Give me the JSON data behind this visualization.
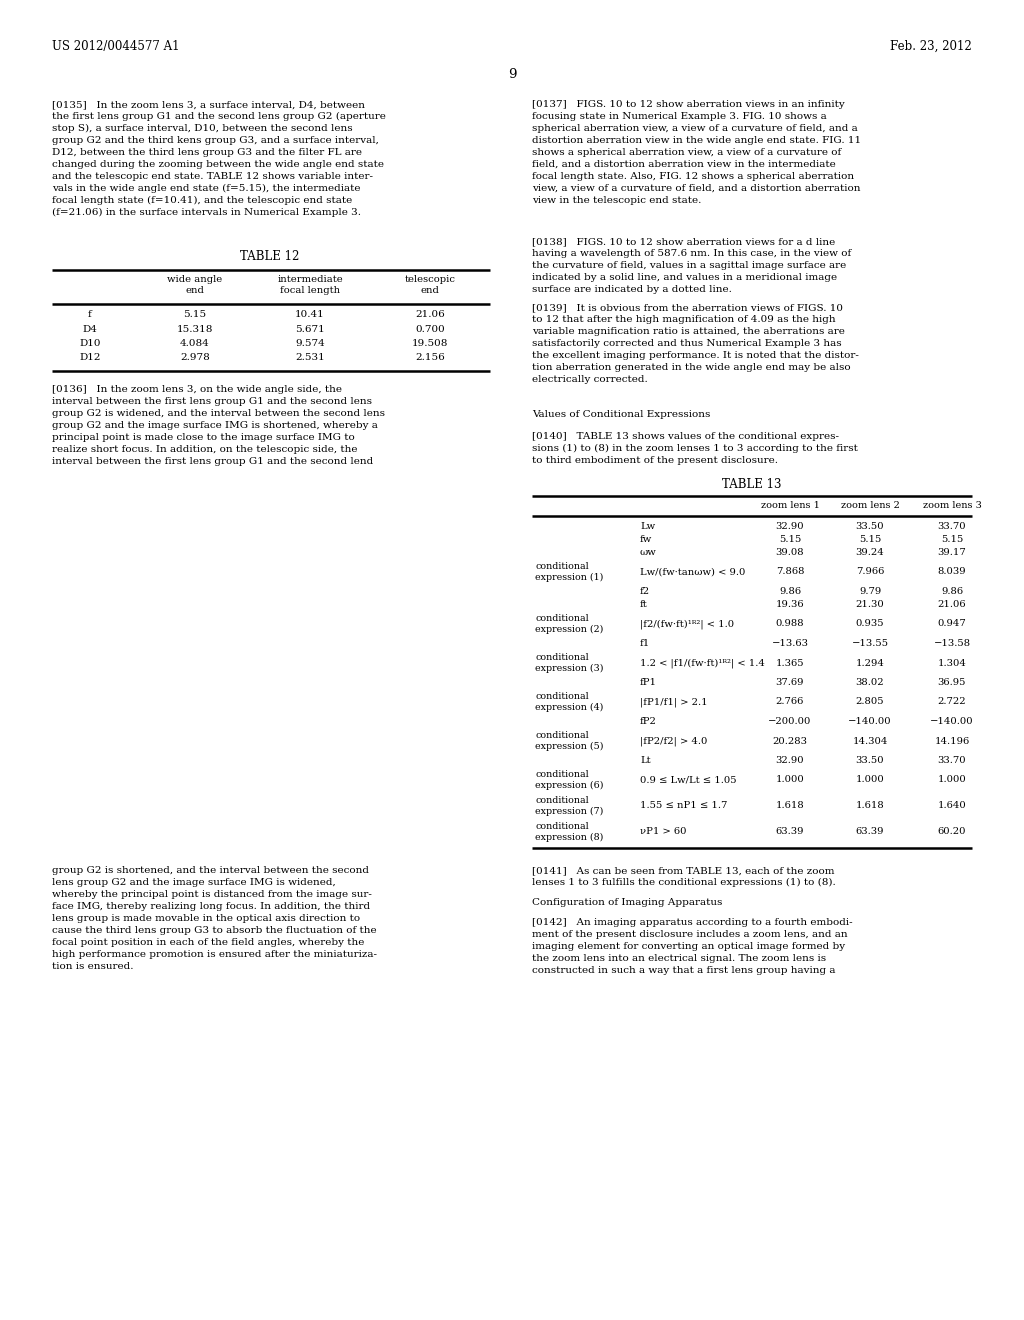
{
  "background_color": "#ffffff",
  "text_color": "#000000",
  "header_left": "US 2012/0044577 A1",
  "header_right": "Feb. 23, 2012",
  "page_number": "9",
  "para135": "[0135]   In the zoom lens 3, a surface interval, D4, between\nthe first lens group G1 and the second lens group G2 (aperture\nstop S), a surface interval, D10, between the second lens\ngroup G2 and the third kens group G3, and a surface interval,\nD12, between the third lens group G3 and the filter FL are\nchanged during the zooming between the wide angle end state\nand the telescopic end state. TABLE 12 shows variable inter-\nvals in the wide angle end state (f=5.15), the intermediate\nfocal length state (f=10.41), and the telescopic end state\n(f=21.06) in the surface intervals in Numerical Example 3.",
  "para136": "[0136]   In the zoom lens 3, on the wide angle side, the\ninterval between the first lens group G1 and the second lens\ngroup G2 is widened, and the interval between the second lens\ngroup G2 and the image surface IMG is shortened, whereby a\nprincipal point is made close to the image surface IMG to\nrealize short focus. In addition, on the telescopic side, the\ninterval between the first lens group G1 and the second lend",
  "para137": "[0137]   FIGS. 10 to 12 show aberration views in an infinity\nfocusing state in Numerical Example 3. FIG. 10 shows a\nspherical aberration view, a view of a curvature of field, and a\ndistortion aberration view in the wide angle end state. FIG. 11\nshows a spherical aberration view, a view of a curvature of\nfield, and a distortion aberration view in the intermediate\nfocal length state. Also, FIG. 12 shows a spherical aberration\nview, a view of a curvature of field, and a distortion aberration\nview in the telescopic end state.",
  "para138": "[0138]   FIGS. 10 to 12 show aberration views for a d line\nhaving a wavelength of 587.6 nm. In this case, in the view of\nthe curvature of field, values in a sagittal image surface are\nindicated by a solid line, and values in a meridional image\nsurface are indicated by a dotted line.",
  "para139": "[0139]   It is obvious from the aberration views of FIGS. 10\nto 12 that after the high magnification of 4.09 as the high\nvariable magnification ratio is attained, the aberrations are\nsatisfactorily corrected and thus Numerical Example 3 has\nthe excellent imaging performance. It is noted that the distor-\ntion aberration generated in the wide angle end may be also\nelectrically corrected.",
  "values_heading": "Values of Conditional Expressions",
  "para140": "[0140]   TABLE 13 shows values of the conditional expres-\nsions (1) to (8) in the zoom lenses 1 to 3 according to the first\nto third embodiment of the present disclosure.",
  "para141_left": "group G2 is shortened, and the interval between the second\nlens group G2 and the image surface IMG is widened,\nwhereby the principal point is distanced from the image sur-\nface IMG, thereby realizing long focus. In addition, the third\nlens group is made movable in the optical axis direction to\ncause the third lens group G3 to absorb the fluctuation of the\nfocal point position in each of the field angles, whereby the\nhigh performance promotion is ensured after the miniaturiza-\ntion is ensured.",
  "para141_right": "[0141]   As can be seen from TABLE 13, each of the zoom\nlenses 1 to 3 fulfills the conditional expressions (1) to (8).",
  "config_heading": "Configuration of Imaging Apparatus",
  "para142": "[0142]   An imaging apparatus according to a fourth embodi-\nment of the present disclosure includes a zoom lens, and an\nimaging element for converting an optical image formed by\nthe zoom lens into an electrical signal. The zoom lens is\nconstructed in such a way that a first lens group having a",
  "table12_title": "TABLE 12",
  "t12_rows": [
    [
      "f",
      "5.15",
      "10.41",
      "21.06"
    ],
    [
      "D4",
      "15.318",
      "5.671",
      "0.700"
    ],
    [
      "D10",
      "4.084",
      "9.574",
      "19.508"
    ],
    [
      "D12",
      "2.978",
      "2.531",
      "2.156"
    ]
  ],
  "table13_title": "TABLE 13",
  "t13_rows": [
    [
      "",
      "Lw",
      "32.90",
      "33.50",
      "33.70"
    ],
    [
      "",
      "fw",
      "5.15",
      "5.15",
      "5.15"
    ],
    [
      "",
      "ωw",
      "39.08",
      "39.24",
      "39.17"
    ],
    [
      "conditional\nexpression (1)",
      "Lw/(fw·tanωw) < 9.0",
      "7.868",
      "7.966",
      "8.039"
    ],
    [
      "",
      "f2",
      "9.86",
      "9.79",
      "9.86"
    ],
    [
      "",
      "ft",
      "19.36",
      "21.30",
      "21.06"
    ],
    [
      "conditional\nexpression (2)",
      "|f2/(fw·ft)¹ᴿ²| < 1.0",
      "0.988",
      "0.935",
      "0.947"
    ],
    [
      "",
      "f1",
      "−13.63",
      "−13.55",
      "−13.58"
    ],
    [
      "conditional\nexpression (3)",
      "1.2 < |f1/(fw·ft)¹ᴿ²| < 1.4",
      "1.365",
      "1.294",
      "1.304"
    ],
    [
      "",
      "fP1",
      "37.69",
      "38.02",
      "36.95"
    ],
    [
      "conditional\nexpression (4)",
      "|fP1/f1| > 2.1",
      "2.766",
      "2.805",
      "2.722"
    ],
    [
      "",
      "fP2",
      "−200.00",
      "−140.00",
      "−140.00"
    ],
    [
      "conditional\nexpression (5)",
      "|fP2/f2| > 4.0",
      "20.283",
      "14.304",
      "14.196"
    ],
    [
      "",
      "Lt",
      "32.90",
      "33.50",
      "33.70"
    ],
    [
      "conditional\nexpression (6)",
      "0.9 ≤ Lw/Lt ≤ 1.05",
      "1.000",
      "1.000",
      "1.000"
    ],
    [
      "conditional\nexpression (7)",
      "1.55 ≤ nP1 ≤ 1.7",
      "1.618",
      "1.618",
      "1.640"
    ],
    [
      "conditional\nexpression (8)",
      "νP1 > 60",
      "63.39",
      "63.39",
      "60.20"
    ]
  ]
}
